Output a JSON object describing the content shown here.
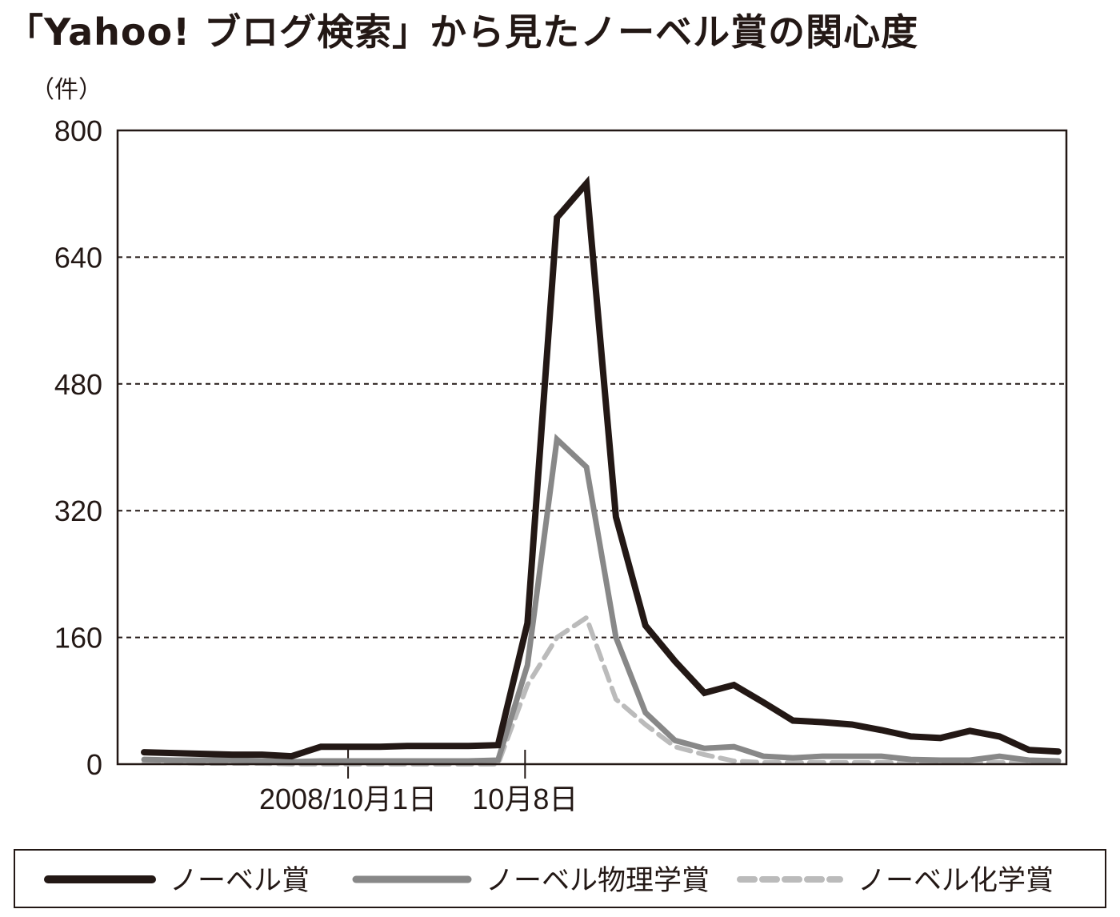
{
  "chart_data": {
    "type": "line",
    "title": "「Yahoo! ブログ検索」から見たノーベル賞の関心度",
    "ylabel": "（件）",
    "ylim": [
      0,
      800
    ],
    "yticks": [
      0,
      160,
      320,
      480,
      640,
      800
    ],
    "ytick_labels": [
      "0",
      "160",
      "320",
      "480",
      "640",
      "800"
    ],
    "grid": true,
    "legend": "bottom",
    "x_tick_labels": [
      {
        "index": 7,
        "label": "2008/10月1日"
      },
      {
        "index": 13,
        "label": "10月8日"
      }
    ],
    "x_count": 32,
    "series": [
      {
        "name": "ノーベル賞",
        "color": "#231815",
        "dash": "solid",
        "values": [
          15,
          14,
          13,
          12,
          12,
          10,
          22,
          22,
          22,
          23,
          23,
          23,
          24,
          178,
          690,
          733,
          312,
          175,
          130,
          90,
          100,
          78,
          55,
          53,
          50,
          43,
          35,
          33,
          42,
          35,
          18,
          16
        ]
      },
      {
        "name": "ノーベル物理学賞",
        "color": "#888888",
        "dash": "solid",
        "values": [
          6,
          5,
          5,
          5,
          4,
          3,
          4,
          4,
          4,
          4,
          4,
          4,
          5,
          125,
          410,
          375,
          160,
          65,
          30,
          20,
          22,
          10,
          8,
          10,
          10,
          10,
          6,
          5,
          5,
          10,
          5,
          4
        ]
      },
      {
        "name": "ノーベル化学賞",
        "color": "#bbbbbb",
        "dash": "dashed",
        "values": [
          2,
          2,
          1,
          1,
          1,
          0,
          0,
          0,
          0,
          0,
          0,
          0,
          0,
          100,
          160,
          185,
          82,
          50,
          22,
          12,
          4,
          2,
          2,
          2,
          2,
          2,
          2,
          2,
          2,
          2,
          2,
          2
        ]
      }
    ]
  }
}
